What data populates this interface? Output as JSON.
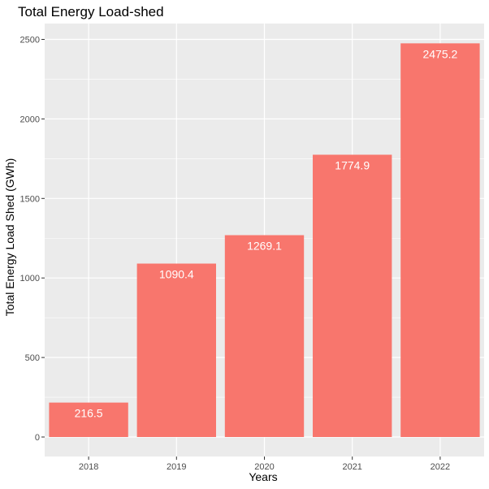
{
  "chart_data": {
    "type": "bar",
    "title": "Total Energy Load-shed",
    "xlabel": "Years",
    "ylabel": "Total Energy Load Shed (GWh)",
    "categories": [
      "2018",
      "2019",
      "2020",
      "2021",
      "2022"
    ],
    "values": [
      216.5,
      1090.4,
      1269.1,
      1774.9,
      2475.2
    ],
    "data_labels": [
      "216.5",
      "1090.4",
      "1269.1",
      "1774.9",
      "2475.2"
    ],
    "y_ticks": [
      0,
      500,
      1000,
      1500,
      2000,
      2500
    ],
    "ylim": [
      0,
      2600
    ],
    "grid": true,
    "legend": "none",
    "bar_color": "#F8766D",
    "panel_color": "#EBEBEB",
    "grid_color": "#FFFFFF"
  }
}
